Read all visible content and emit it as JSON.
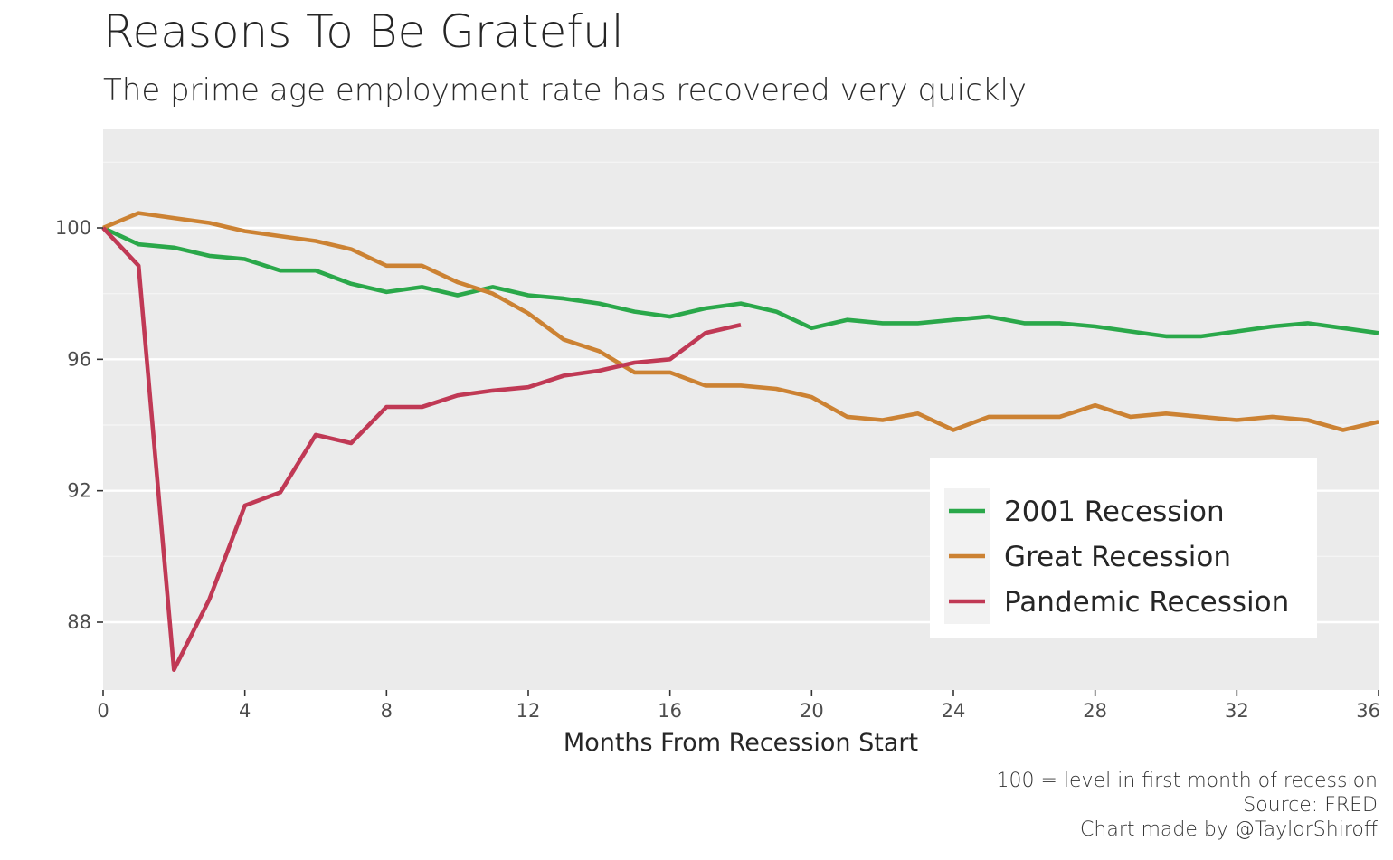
{
  "chart_data": {
    "type": "line",
    "title": "Reasons To Be Grateful",
    "subtitle": "The prime age employment rate has recovered very quickly",
    "xlabel": "Months From Recession Start",
    "ylabel": "",
    "xlim": [
      0,
      36
    ],
    "ylim": [
      86,
      103
    ],
    "x_ticks": [
      0,
      4,
      8,
      12,
      16,
      20,
      24,
      28,
      32,
      36
    ],
    "y_ticks": [
      88,
      92,
      96,
      100
    ],
    "grid": true,
    "legend_position": "bottom-right",
    "series": [
      {
        "name": "2001 Recession",
        "color": "#2aa84a",
        "x": [
          0,
          1,
          2,
          3,
          4,
          5,
          6,
          7,
          8,
          9,
          10,
          11,
          12,
          13,
          14,
          15,
          16,
          17,
          18,
          19,
          20,
          21,
          22,
          23,
          24,
          25,
          26,
          27,
          28,
          29,
          30,
          31,
          32,
          33,
          34,
          35,
          36
        ],
        "values": [
          100,
          99.5,
          99.4,
          99.15,
          99.05,
          98.7,
          98.7,
          98.3,
          98.05,
          98.2,
          97.95,
          98.2,
          97.95,
          97.85,
          97.7,
          97.45,
          97.3,
          97.55,
          97.7,
          97.45,
          96.95,
          97.2,
          97.1,
          97.1,
          97.2,
          97.3,
          97.1,
          97.1,
          97.0,
          96.85,
          96.7,
          96.7,
          96.85,
          97.0,
          97.1,
          96.95,
          96.8
        ]
      },
      {
        "name": "Great Recession",
        "color": "#cc8233",
        "x": [
          0,
          1,
          2,
          3,
          4,
          5,
          6,
          7,
          8,
          9,
          10,
          11,
          12,
          13,
          14,
          15,
          16,
          17,
          18,
          19,
          20,
          21,
          22,
          23,
          24,
          25,
          26,
          27,
          28,
          29,
          30,
          31,
          32,
          33,
          34,
          35,
          36
        ],
        "values": [
          100,
          100.45,
          100.3,
          100.15,
          99.9,
          99.75,
          99.6,
          99.35,
          98.85,
          98.85,
          98.35,
          98.0,
          97.4,
          96.6,
          96.25,
          95.6,
          95.6,
          95.2,
          95.2,
          95.1,
          94.85,
          94.25,
          94.15,
          94.35,
          93.85,
          94.25,
          94.25,
          94.25,
          94.6,
          94.25,
          94.35,
          94.25,
          94.15,
          94.25,
          94.15,
          93.85,
          94.1
        ]
      },
      {
        "name": "Pandemic Recession",
        "color": "#c03955",
        "x": [
          0,
          1,
          2,
          3,
          4,
          5,
          6,
          7,
          8,
          9,
          10,
          11,
          12,
          13,
          14,
          15,
          16,
          17,
          18
        ],
        "values": [
          100,
          98.85,
          86.55,
          88.7,
          91.55,
          91.95,
          93.7,
          93.45,
          94.55,
          94.55,
          94.9,
          95.05,
          95.15,
          95.5,
          95.65,
          95.9,
          96.0,
          96.8,
          97.05
        ]
      }
    ],
    "caption": [
      "100 = level in first month of recession",
      "Source: FRED",
      "Chart made by @TaylorShiroff"
    ]
  }
}
